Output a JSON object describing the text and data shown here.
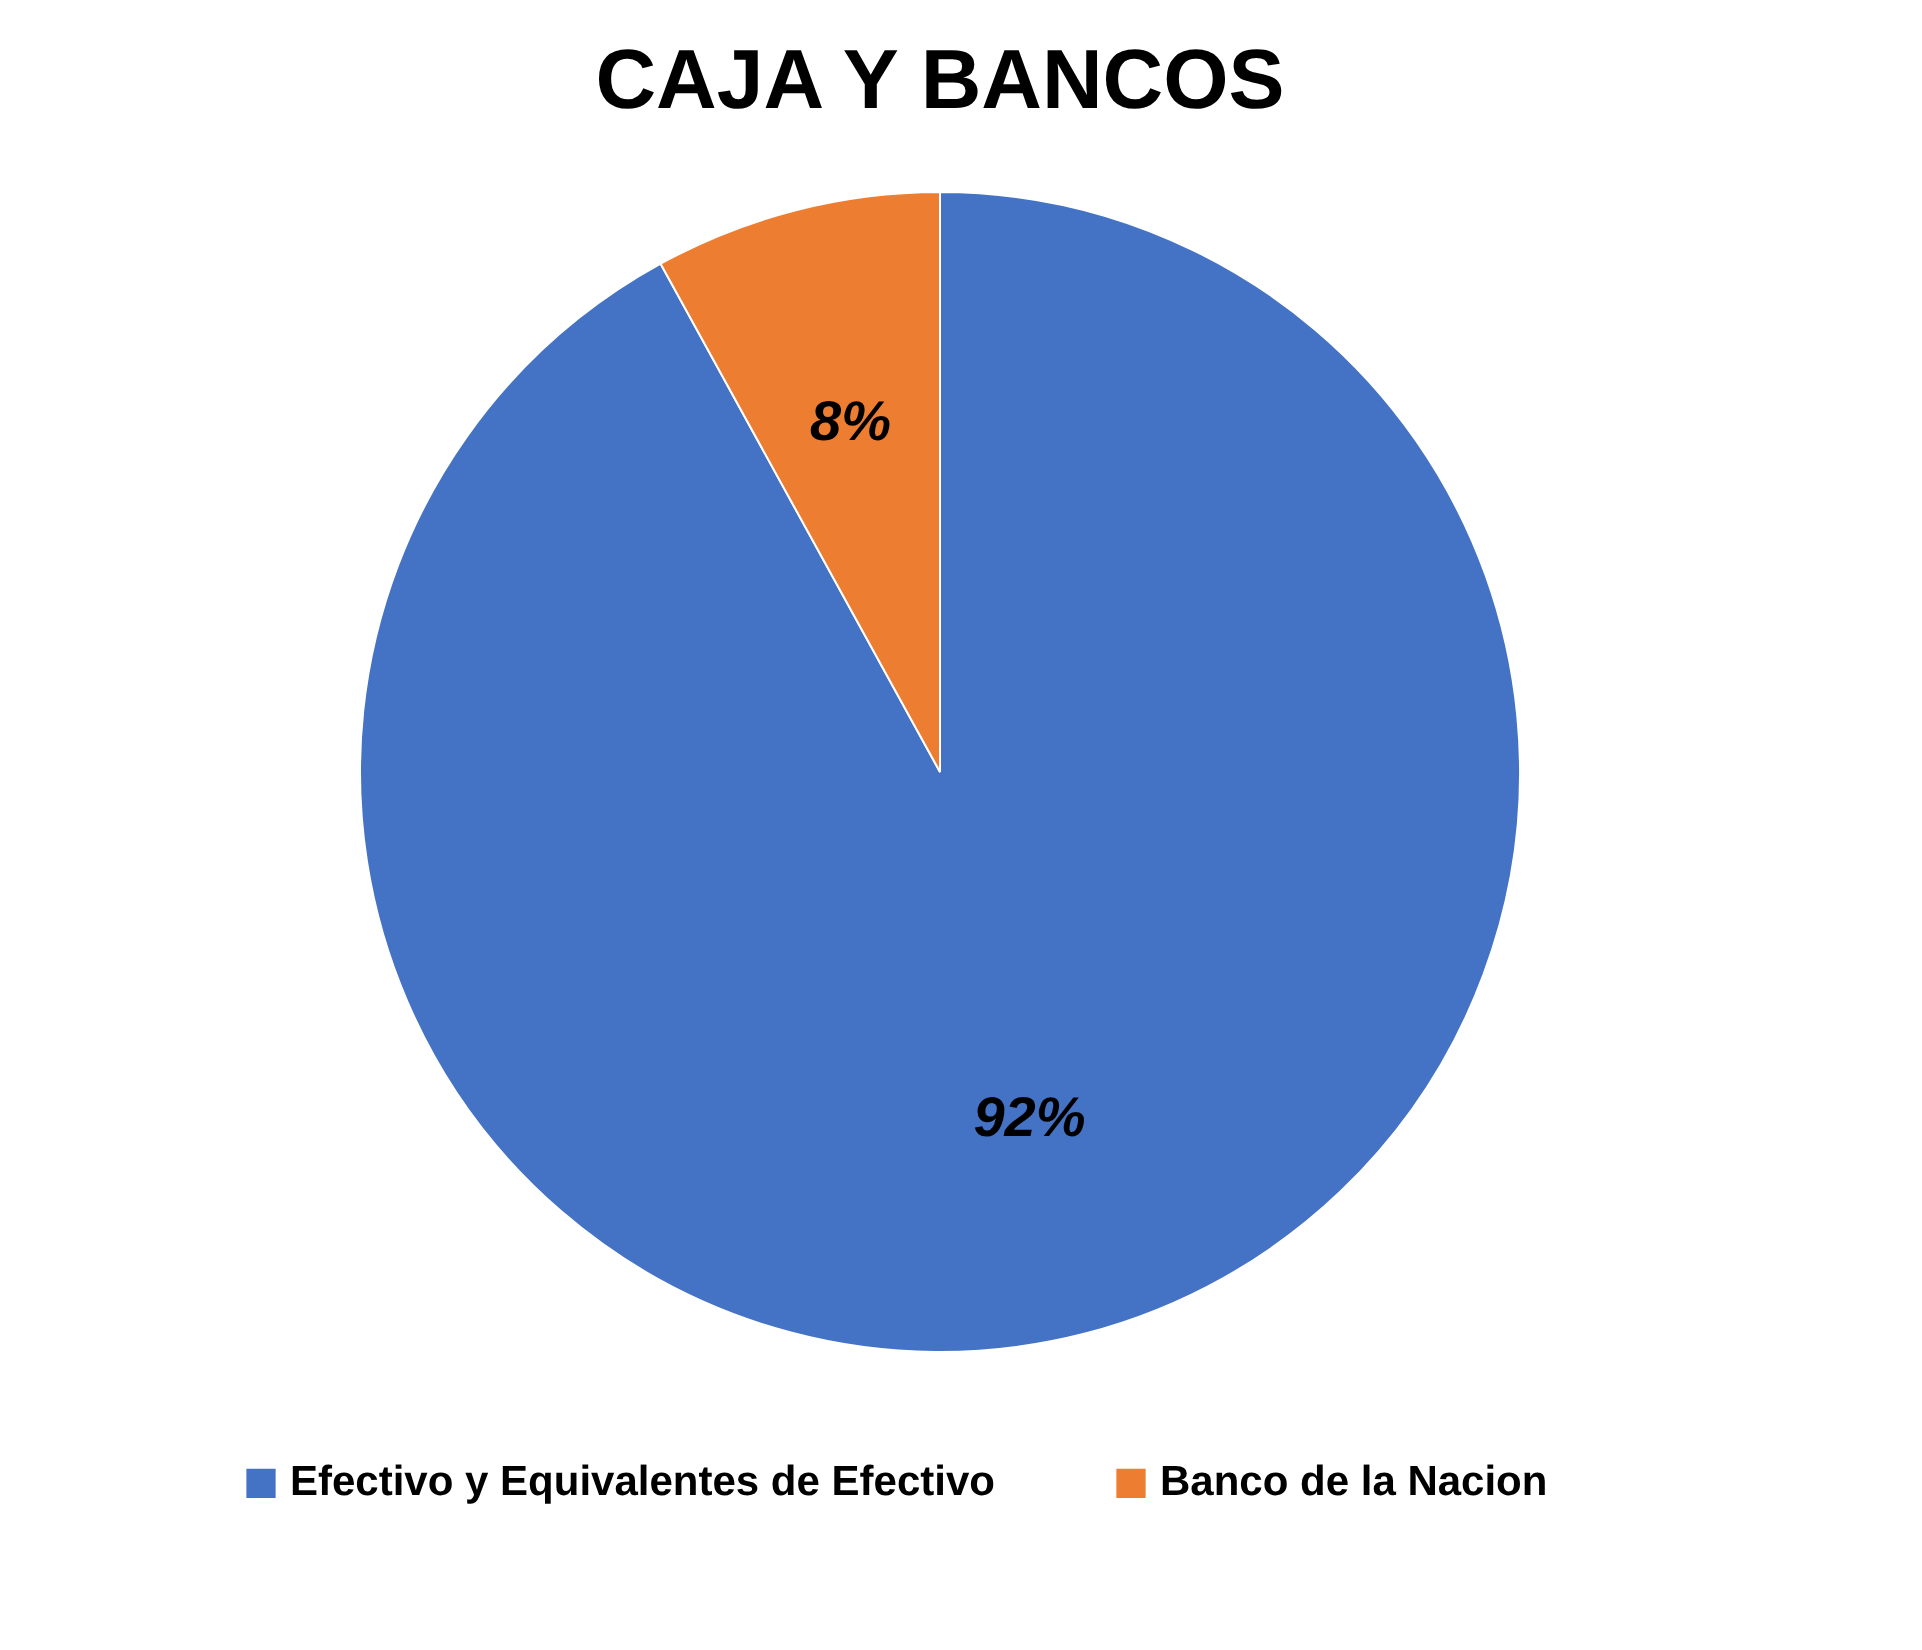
{
  "chart_data": {
    "type": "pie",
    "title": "CAJA Y BANCOS",
    "categories": [
      "Efectivo y  Equivalentes de Efectivo",
      "Banco de la Nacion"
    ],
    "values": [
      92,
      8
    ],
    "colors": [
      "#4472c4",
      "#ed7d31"
    ],
    "value_labels": [
      "92%",
      "8%"
    ],
    "legend": "bottom"
  }
}
